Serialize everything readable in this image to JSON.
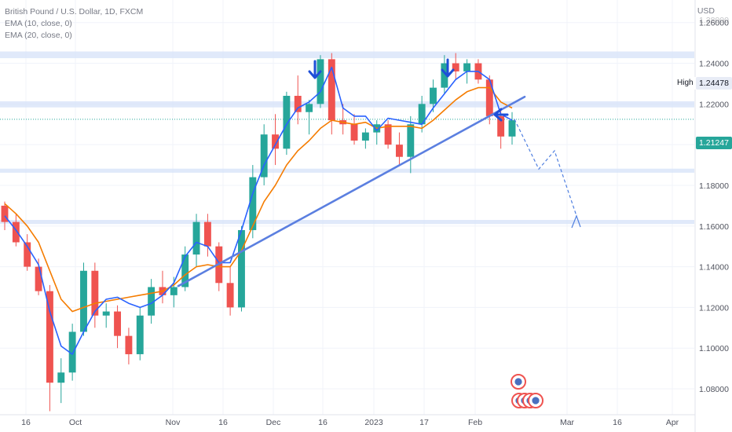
{
  "legend": {
    "title": "British Pound / U.S. Dollar, 1D, FXCM",
    "ema10": "EMA (10, close, 0)",
    "ema20": "EMA (20, close, 0)"
  },
  "currency_label": "USD",
  "high_label": "High",
  "high_value": "1.24478",
  "last_price": "1.21247",
  "colors": {
    "up": "#26a69a",
    "down": "#ef5350",
    "ema10": "#2962ff",
    "ema20": "#f57c00",
    "trendline": "#5b7fe0",
    "zone": "#d6e2f8",
    "arrow": "#1e4fd8",
    "grid": "#f0f3fa",
    "last_tag": "#26a69a"
  },
  "chart_data": {
    "type": "candlestick",
    "symbol": "GBPUSD",
    "interval": "1D",
    "ylim": [
      1.068,
      1.275
    ],
    "y_ticks": [
      "1.26000",
      "1.24000",
      "1.22000",
      "1.20000",
      "1.18000",
      "1.16000",
      "1.14000",
      "1.12000",
      "1.10000",
      "1.08000"
    ],
    "x_ticks": [
      "16",
      "Oct",
      "Nov",
      "16",
      "Dec",
      "16",
      "2023",
      "17",
      "Feb",
      "Mar",
      "16",
      "Apr"
    ],
    "zones": [
      [
        1.2425,
        1.2458
      ],
      [
        1.2183,
        1.2213
      ],
      [
        1.1862,
        1.1882
      ],
      [
        1.161,
        1.163
      ]
    ],
    "ema10": [
      1.165,
      1.158,
      1.15,
      1.141,
      1.118,
      1.101,
      1.097,
      1.108,
      1.118,
      1.124,
      1.125,
      1.122,
      1.12,
      1.122,
      1.126,
      1.132,
      1.145,
      1.152,
      1.15,
      1.142,
      1.142,
      1.158,
      1.176,
      1.19,
      1.2,
      1.21,
      1.218,
      1.221,
      1.226,
      1.238,
      1.218,
      1.214,
      1.214,
      1.207,
      1.213,
      1.212,
      1.211,
      1.21,
      1.218,
      1.225,
      1.232,
      1.236,
      1.236,
      1.232,
      1.215,
      1.212
    ],
    "ema20": [
      1.171,
      1.166,
      1.16,
      1.152,
      1.138,
      1.124,
      1.118,
      1.12,
      1.122,
      1.123,
      1.124,
      1.125,
      1.126,
      1.127,
      1.128,
      1.131,
      1.136,
      1.14,
      1.141,
      1.14,
      1.14,
      1.148,
      1.16,
      1.172,
      1.18,
      1.19,
      1.197,
      1.202,
      1.208,
      1.212,
      1.211,
      1.21,
      1.211,
      1.208,
      1.209,
      1.209,
      1.209,
      1.208,
      1.212,
      1.217,
      1.222,
      1.226,
      1.228,
      1.228,
      1.221,
      1.218
    ],
    "candles": [
      [
        1.17,
        1.172,
        1.158,
        1.162
      ],
      [
        1.162,
        1.166,
        1.15,
        1.152
      ],
      [
        1.152,
        1.156,
        1.138,
        1.14
      ],
      [
        1.14,
        1.144,
        1.126,
        1.128
      ],
      [
        1.128,
        1.131,
        1.069,
        1.083
      ],
      [
        1.083,
        1.095,
        1.073,
        1.088
      ],
      [
        1.088,
        1.112,
        1.084,
        1.108
      ],
      [
        1.108,
        1.142,
        1.106,
        1.138
      ],
      [
        1.138,
        1.142,
        1.11,
        1.116
      ],
      [
        1.116,
        1.122,
        1.11,
        1.118
      ],
      [
        1.118,
        1.121,
        1.1,
        1.106
      ],
      [
        1.106,
        1.11,
        1.092,
        1.097
      ],
      [
        1.097,
        1.12,
        1.094,
        1.116
      ],
      [
        1.116,
        1.134,
        1.112,
        1.13
      ],
      [
        1.13,
        1.138,
        1.122,
        1.126
      ],
      [
        1.126,
        1.135,
        1.12,
        1.13
      ],
      [
        1.13,
        1.15,
        1.128,
        1.146
      ],
      [
        1.146,
        1.166,
        1.14,
        1.162
      ],
      [
        1.162,
        1.166,
        1.145,
        1.15
      ],
      [
        1.15,
        1.152,
        1.128,
        1.132
      ],
      [
        1.132,
        1.14,
        1.116,
        1.12
      ],
      [
        1.12,
        1.16,
        1.118,
        1.158
      ],
      [
        1.158,
        1.19,
        1.154,
        1.184
      ],
      [
        1.184,
        1.21,
        1.18,
        1.205
      ],
      [
        1.205,
        1.215,
        1.19,
        1.198
      ],
      [
        1.198,
        1.226,
        1.195,
        1.224
      ],
      [
        1.224,
        1.234,
        1.21,
        1.216
      ],
      [
        1.216,
        1.222,
        1.205,
        1.22
      ],
      [
        1.22,
        1.244,
        1.218,
        1.242
      ],
      [
        1.242,
        1.245,
        1.205,
        1.212
      ],
      [
        1.212,
        1.22,
        1.205,
        1.21
      ],
      [
        1.21,
        1.215,
        1.2,
        1.202
      ],
      [
        1.202,
        1.208,
        1.198,
        1.206
      ],
      [
        1.206,
        1.212,
        1.2,
        1.21
      ],
      [
        1.21,
        1.212,
        1.198,
        1.2
      ],
      [
        1.2,
        1.206,
        1.19,
        1.194
      ],
      [
        1.194,
        1.214,
        1.186,
        1.21
      ],
      [
        1.21,
        1.224,
        1.206,
        1.22
      ],
      [
        1.22,
        1.232,
        1.216,
        1.228
      ],
      [
        1.228,
        1.244,
        1.225,
        1.24
      ],
      [
        1.24,
        1.245,
        1.232,
        1.236
      ],
      [
        1.236,
        1.242,
        1.23,
        1.24
      ],
      [
        1.24,
        1.242,
        1.23,
        1.232
      ],
      [
        1.232,
        1.234,
        1.21,
        1.214
      ],
      [
        1.214,
        1.218,
        1.198,
        1.204
      ],
      [
        1.204,
        1.216,
        1.2,
        1.212
      ]
    ],
    "trendline": [
      [
        0,
        1.13
      ],
      [
        1,
        1.22
      ]
    ],
    "projection": [
      1.2125,
      1.188,
      1.197,
      1.165
    ]
  }
}
